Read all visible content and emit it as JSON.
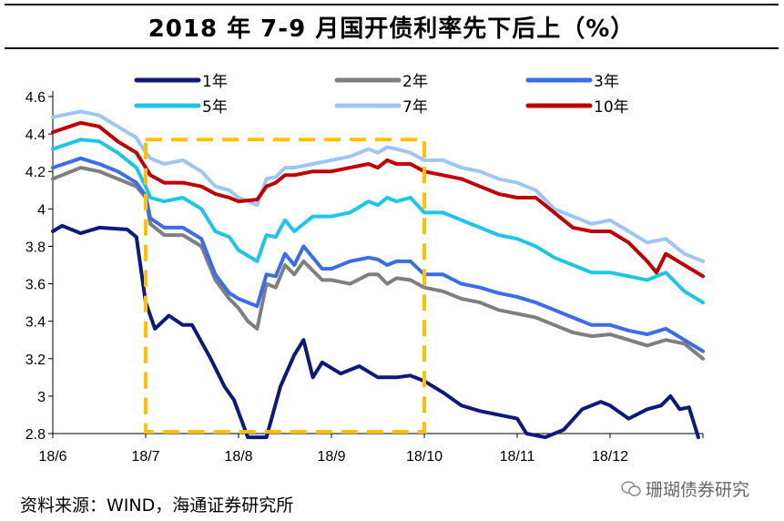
{
  "title": "2018 年 7-9 月国开债利率先下后上（%）",
  "source": "资料来源：WIND，海通证券研究所",
  "watermark": "珊瑚债券研究",
  "colors": {
    "1年": "#0d1a7a",
    "2年": "#7f7f7f",
    "3年": "#3a6de8",
    "5年": "#1ec5e8",
    "7年": "#9cc7f4",
    "10年": "#c00000",
    "highlight": "#ffc000"
  },
  "chart_data": {
    "type": "line",
    "title": "2018 年 7-9 月国开债利率先下后上（%）",
    "ylim": [
      2.8,
      4.6
    ],
    "yticks": [
      "4.6",
      "4.4",
      "4.2",
      "4",
      "3.8",
      "3.6",
      "3.4",
      "3.2",
      "3",
      "2.8"
    ],
    "xlim": [
      0,
      7
    ],
    "xticks": [
      "18/6",
      "18/7",
      "18/8",
      "18/9",
      "18/10",
      "18/11",
      "18/12"
    ],
    "highlight": {
      "x_range": [
        1,
        4
      ],
      "y_range": [
        2.8,
        4.37
      ],
      "label": "2018 年 7-9 月"
    },
    "series": [
      {
        "name": "1年",
        "points": [
          [
            0,
            3.88
          ],
          [
            0.1,
            3.91
          ],
          [
            0.3,
            3.87
          ],
          [
            0.5,
            3.9
          ],
          [
            0.8,
            3.89
          ],
          [
            0.9,
            3.85
          ],
          [
            1.0,
            3.5
          ],
          [
            1.1,
            3.36
          ],
          [
            1.25,
            3.43
          ],
          [
            1.4,
            3.38
          ],
          [
            1.5,
            3.38
          ],
          [
            1.7,
            3.2
          ],
          [
            1.85,
            3.05
          ],
          [
            1.95,
            2.98
          ],
          [
            2.1,
            2.78
          ],
          [
            2.3,
            2.78
          ],
          [
            2.45,
            3.05
          ],
          [
            2.6,
            3.22
          ],
          [
            2.7,
            3.3
          ],
          [
            2.8,
            3.1
          ],
          [
            2.9,
            3.18
          ],
          [
            3.1,
            3.12
          ],
          [
            3.3,
            3.16
          ],
          [
            3.5,
            3.1
          ],
          [
            3.7,
            3.1
          ],
          [
            3.85,
            3.11
          ],
          [
            4.0,
            3.08
          ],
          [
            4.2,
            3.02
          ],
          [
            4.4,
            2.95
          ],
          [
            4.6,
            2.92
          ],
          [
            4.8,
            2.9
          ],
          [
            5.0,
            2.88
          ],
          [
            5.1,
            2.8
          ],
          [
            5.3,
            2.78
          ],
          [
            5.5,
            2.82
          ],
          [
            5.7,
            2.93
          ],
          [
            5.9,
            2.97
          ],
          [
            6.0,
            2.95
          ],
          [
            6.2,
            2.88
          ],
          [
            6.4,
            2.93
          ],
          [
            6.55,
            2.95
          ],
          [
            6.65,
            3.0
          ],
          [
            6.75,
            2.93
          ],
          [
            6.85,
            2.94
          ],
          [
            6.95,
            2.78
          ]
        ]
      },
      {
        "name": "2年",
        "points": [
          [
            0,
            4.16
          ],
          [
            0.3,
            4.22
          ],
          [
            0.5,
            4.2
          ],
          [
            0.7,
            4.16
          ],
          [
            0.9,
            4.12
          ],
          [
            1.0,
            4.06
          ],
          [
            1.05,
            3.92
          ],
          [
            1.2,
            3.86
          ],
          [
            1.4,
            3.86
          ],
          [
            1.6,
            3.8
          ],
          [
            1.75,
            3.62
          ],
          [
            1.9,
            3.52
          ],
          [
            2.0,
            3.47
          ],
          [
            2.1,
            3.4
          ],
          [
            2.2,
            3.36
          ],
          [
            2.3,
            3.6
          ],
          [
            2.4,
            3.58
          ],
          [
            2.5,
            3.7
          ],
          [
            2.6,
            3.65
          ],
          [
            2.7,
            3.72
          ],
          [
            2.9,
            3.62
          ],
          [
            3.0,
            3.62
          ],
          [
            3.2,
            3.6
          ],
          [
            3.4,
            3.65
          ],
          [
            3.5,
            3.65
          ],
          [
            3.6,
            3.6
          ],
          [
            3.7,
            3.63
          ],
          [
            3.85,
            3.62
          ],
          [
            4.0,
            3.58
          ],
          [
            4.2,
            3.56
          ],
          [
            4.4,
            3.52
          ],
          [
            4.6,
            3.5
          ],
          [
            4.8,
            3.46
          ],
          [
            5.0,
            3.44
          ],
          [
            5.2,
            3.42
          ],
          [
            5.4,
            3.38
          ],
          [
            5.6,
            3.34
          ],
          [
            5.8,
            3.32
          ],
          [
            6.0,
            3.33
          ],
          [
            6.2,
            3.3
          ],
          [
            6.4,
            3.27
          ],
          [
            6.6,
            3.3
          ],
          [
            6.8,
            3.28
          ],
          [
            7.0,
            3.2
          ]
        ]
      },
      {
        "name": "3年",
        "points": [
          [
            0,
            4.22
          ],
          [
            0.3,
            4.27
          ],
          [
            0.5,
            4.24
          ],
          [
            0.7,
            4.2
          ],
          [
            0.9,
            4.14
          ],
          [
            1.0,
            4.07
          ],
          [
            1.05,
            3.95
          ],
          [
            1.2,
            3.9
          ],
          [
            1.4,
            3.9
          ],
          [
            1.6,
            3.84
          ],
          [
            1.75,
            3.65
          ],
          [
            1.9,
            3.55
          ],
          [
            2.0,
            3.52
          ],
          [
            2.2,
            3.48
          ],
          [
            2.3,
            3.65
          ],
          [
            2.4,
            3.64
          ],
          [
            2.5,
            3.76
          ],
          [
            2.6,
            3.7
          ],
          [
            2.7,
            3.8
          ],
          [
            2.9,
            3.68
          ],
          [
            3.0,
            3.68
          ],
          [
            3.2,
            3.72
          ],
          [
            3.4,
            3.74
          ],
          [
            3.5,
            3.73
          ],
          [
            3.6,
            3.7
          ],
          [
            3.7,
            3.72
          ],
          [
            3.85,
            3.72
          ],
          [
            4.0,
            3.65
          ],
          [
            4.2,
            3.65
          ],
          [
            4.4,
            3.6
          ],
          [
            4.6,
            3.58
          ],
          [
            4.8,
            3.55
          ],
          [
            5.0,
            3.53
          ],
          [
            5.2,
            3.5
          ],
          [
            5.4,
            3.46
          ],
          [
            5.6,
            3.42
          ],
          [
            5.8,
            3.38
          ],
          [
            6.0,
            3.38
          ],
          [
            6.2,
            3.35
          ],
          [
            6.4,
            3.33
          ],
          [
            6.6,
            3.36
          ],
          [
            6.8,
            3.3
          ],
          [
            7.0,
            3.24
          ]
        ]
      },
      {
        "name": "5年",
        "points": [
          [
            0,
            4.32
          ],
          [
            0.3,
            4.37
          ],
          [
            0.5,
            4.36
          ],
          [
            0.7,
            4.3
          ],
          [
            0.9,
            4.22
          ],
          [
            1.0,
            4.12
          ],
          [
            1.05,
            4.06
          ],
          [
            1.2,
            4.04
          ],
          [
            1.4,
            4.06
          ],
          [
            1.6,
            4.0
          ],
          [
            1.75,
            3.88
          ],
          [
            1.9,
            3.85
          ],
          [
            2.0,
            3.78
          ],
          [
            2.2,
            3.72
          ],
          [
            2.3,
            3.86
          ],
          [
            2.4,
            3.85
          ],
          [
            2.5,
            3.94
          ],
          [
            2.6,
            3.88
          ],
          [
            2.8,
            3.96
          ],
          [
            3.0,
            3.96
          ],
          [
            3.2,
            3.98
          ],
          [
            3.4,
            4.04
          ],
          [
            3.5,
            4.02
          ],
          [
            3.6,
            4.06
          ],
          [
            3.7,
            4.04
          ],
          [
            3.85,
            4.06
          ],
          [
            4.0,
            3.98
          ],
          [
            4.2,
            3.98
          ],
          [
            4.4,
            3.94
          ],
          [
            4.6,
            3.9
          ],
          [
            4.8,
            3.86
          ],
          [
            5.0,
            3.84
          ],
          [
            5.2,
            3.8
          ],
          [
            5.4,
            3.74
          ],
          [
            5.6,
            3.7
          ],
          [
            5.8,
            3.66
          ],
          [
            6.0,
            3.66
          ],
          [
            6.2,
            3.64
          ],
          [
            6.4,
            3.62
          ],
          [
            6.6,
            3.66
          ],
          [
            6.8,
            3.56
          ],
          [
            7.0,
            3.5
          ]
        ]
      },
      {
        "name": "7年",
        "points": [
          [
            0,
            4.49
          ],
          [
            0.3,
            4.52
          ],
          [
            0.5,
            4.5
          ],
          [
            0.7,
            4.44
          ],
          [
            0.9,
            4.38
          ],
          [
            1.0,
            4.3
          ],
          [
            1.05,
            4.27
          ],
          [
            1.2,
            4.24
          ],
          [
            1.4,
            4.26
          ],
          [
            1.6,
            4.2
          ],
          [
            1.75,
            4.12
          ],
          [
            1.9,
            4.1
          ],
          [
            2.0,
            4.06
          ],
          [
            2.2,
            4.02
          ],
          [
            2.3,
            4.16
          ],
          [
            2.4,
            4.17
          ],
          [
            2.5,
            4.22
          ],
          [
            2.6,
            4.22
          ],
          [
            2.8,
            4.24
          ],
          [
            3.0,
            4.26
          ],
          [
            3.2,
            4.28
          ],
          [
            3.4,
            4.32
          ],
          [
            3.5,
            4.3
          ],
          [
            3.6,
            4.33
          ],
          [
            3.7,
            4.32
          ],
          [
            3.85,
            4.3
          ],
          [
            4.0,
            4.26
          ],
          [
            4.2,
            4.26
          ],
          [
            4.4,
            4.22
          ],
          [
            4.6,
            4.2
          ],
          [
            4.8,
            4.16
          ],
          [
            5.0,
            4.14
          ],
          [
            5.2,
            4.1
          ],
          [
            5.4,
            4.0
          ],
          [
            5.6,
            3.96
          ],
          [
            5.8,
            3.92
          ],
          [
            6.0,
            3.94
          ],
          [
            6.2,
            3.88
          ],
          [
            6.4,
            3.82
          ],
          [
            6.6,
            3.84
          ],
          [
            6.8,
            3.76
          ],
          [
            7.0,
            3.72
          ]
        ]
      },
      {
        "name": "10年",
        "points": [
          [
            0,
            4.41
          ],
          [
            0.3,
            4.46
          ],
          [
            0.5,
            4.44
          ],
          [
            0.7,
            4.36
          ],
          [
            0.9,
            4.3
          ],
          [
            1.0,
            4.22
          ],
          [
            1.05,
            4.18
          ],
          [
            1.2,
            4.14
          ],
          [
            1.4,
            4.14
          ],
          [
            1.6,
            4.12
          ],
          [
            1.75,
            4.08
          ],
          [
            1.9,
            4.06
          ],
          [
            2.0,
            4.04
          ],
          [
            2.2,
            4.05
          ],
          [
            2.3,
            4.12
          ],
          [
            2.4,
            4.14
          ],
          [
            2.5,
            4.18
          ],
          [
            2.6,
            4.18
          ],
          [
            2.8,
            4.2
          ],
          [
            3.0,
            4.2
          ],
          [
            3.2,
            4.22
          ],
          [
            3.4,
            4.24
          ],
          [
            3.5,
            4.22
          ],
          [
            3.6,
            4.26
          ],
          [
            3.7,
            4.24
          ],
          [
            3.85,
            4.24
          ],
          [
            4.0,
            4.2
          ],
          [
            4.2,
            4.18
          ],
          [
            4.4,
            4.16
          ],
          [
            4.6,
            4.12
          ],
          [
            4.8,
            4.08
          ],
          [
            5.0,
            4.06
          ],
          [
            5.2,
            4.06
          ],
          [
            5.4,
            3.98
          ],
          [
            5.6,
            3.9
          ],
          [
            5.8,
            3.88
          ],
          [
            6.0,
            3.88
          ],
          [
            6.2,
            3.82
          ],
          [
            6.4,
            3.72
          ],
          [
            6.5,
            3.66
          ],
          [
            6.6,
            3.76
          ],
          [
            6.8,
            3.7
          ],
          [
            7.0,
            3.64
          ]
        ]
      }
    ]
  }
}
